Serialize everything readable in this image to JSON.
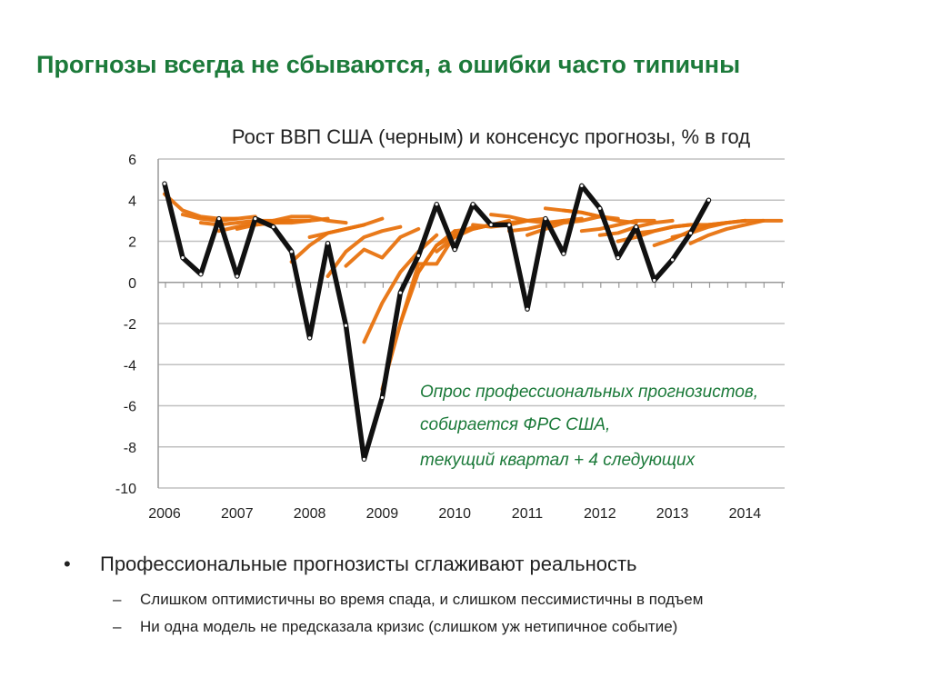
{
  "slide_title": "Прогнозы всегда не сбываются, а ошибки часто типичны",
  "chart_data": {
    "type": "line",
    "title": "Рост ВВП США (черным) и консенсус прогнозы, % в год",
    "xlabel": "",
    "ylabel": "",
    "ylim": [
      -10,
      6
    ],
    "yticks": [
      "6",
      "4",
      "2",
      "0",
      "-2",
      "-4",
      "-6",
      "-8",
      "-10"
    ],
    "ytick_values": [
      6,
      4,
      2,
      0,
      -2,
      -4,
      -6,
      -8,
      -10
    ],
    "xtick_labels": [
      "2006",
      "2007",
      "2008",
      "2009",
      "2010",
      "2011",
      "2012",
      "2013",
      "2014"
    ],
    "x_start": "2006Q1",
    "x_frequency": "quarterly",
    "grid": true,
    "colors": {
      "actual": "#111111",
      "forecast": "#e8730f",
      "grid": "#c0c0c0"
    },
    "actual": [
      4.8,
      1.2,
      0.4,
      3.1,
      0.3,
      3.1,
      2.7,
      1.5,
      -2.7,
      1.9,
      -2.1,
      -8.6,
      -5.6,
      -0.5,
      1.3,
      3.8,
      1.6,
      3.8,
      2.8,
      2.8,
      -1.3,
      3.1,
      1.4,
      4.7,
      3.6,
      1.2,
      2.7,
      0.1,
      1.1,
      2.4,
      4.0
    ],
    "forecasts": [
      {
        "start": 0,
        "values": [
          4.3,
          3.5,
          3.2,
          3.1,
          3.1
        ]
      },
      {
        "start": 1,
        "values": [
          3.3,
          3.1,
          3.0,
          3.1,
          3.2
        ]
      },
      {
        "start": 2,
        "values": [
          2.9,
          2.8,
          2.9,
          3.0,
          3.0
        ]
      },
      {
        "start": 3,
        "values": [
          2.5,
          2.7,
          2.9,
          3.0,
          3.0
        ]
      },
      {
        "start": 4,
        "values": [
          2.6,
          2.8,
          2.9,
          2.9,
          3.0
        ]
      },
      {
        "start": 5,
        "values": [
          2.8,
          2.9,
          3.0,
          3.0,
          3.1
        ]
      },
      {
        "start": 6,
        "values": [
          3.0,
          3.2,
          3.2,
          3.0,
          2.9
        ]
      },
      {
        "start": 7,
        "values": [
          1.0,
          1.8,
          2.4,
          2.6,
          2.8
        ]
      },
      {
        "start": 8,
        "values": [
          2.2,
          2.4,
          2.6,
          2.8,
          3.1
        ]
      },
      {
        "start": 9,
        "values": [
          0.3,
          1.5,
          2.2,
          2.5,
          2.7
        ]
      },
      {
        "start": 10,
        "values": [
          0.8,
          1.6,
          1.2,
          2.2,
          2.6
        ]
      },
      {
        "start": 11,
        "values": [
          -2.9,
          -1.0,
          0.5,
          1.5,
          2.3
        ]
      },
      {
        "start": 12,
        "values": [
          -5.2,
          -2.0,
          0.5,
          1.8,
          2.5
        ]
      },
      {
        "start": 13,
        "values": [
          -2.0,
          0.9,
          0.9,
          2.3,
          2.7
        ]
      },
      {
        "start": 14,
        "values": [
          0.5,
          1.8,
          2.3,
          2.6,
          2.8
        ]
      },
      {
        "start": 15,
        "values": [
          1.5,
          2.2,
          2.6,
          2.8,
          3.0
        ]
      },
      {
        "start": 16,
        "values": [
          2.5,
          2.6,
          2.8,
          2.9,
          3.0
        ]
      },
      {
        "start": 17,
        "values": [
          2.8,
          2.7,
          2.8,
          3.0,
          3.1
        ]
      },
      {
        "start": 18,
        "values": [
          3.3,
          3.2,
          3.0,
          2.9,
          3.0
        ]
      },
      {
        "start": 19,
        "values": [
          2.5,
          2.6,
          2.8,
          3.0,
          3.1
        ]
      },
      {
        "start": 20,
        "values": [
          2.3,
          2.6,
          2.9,
          3.0,
          3.2
        ]
      },
      {
        "start": 21,
        "values": [
          3.6,
          3.5,
          3.4,
          3.2,
          3.1
        ]
      },
      {
        "start": 22,
        "values": [
          3.5,
          3.4,
          3.2,
          3.0,
          2.9
        ]
      },
      {
        "start": 23,
        "values": [
          2.5,
          2.6,
          2.8,
          3.0,
          3.0
        ]
      },
      {
        "start": 24,
        "values": [
          2.3,
          2.4,
          2.7,
          2.9,
          3.0
        ]
      },
      {
        "start": 25,
        "values": [
          2.0,
          2.2,
          2.5,
          2.7,
          2.8
        ]
      },
      {
        "start": 26,
        "values": [
          2.4,
          2.5,
          2.7,
          2.8,
          2.8
        ]
      },
      {
        "start": 27,
        "values": [
          1.8,
          2.1,
          2.5,
          2.8,
          2.9
        ]
      },
      {
        "start": 28,
        "values": [
          2.2,
          2.4,
          2.7,
          2.9,
          3.0
        ]
      },
      {
        "start": 29,
        "values": [
          1.9,
          2.3,
          2.6,
          2.8,
          3.0
        ]
      },
      {
        "start": 30,
        "values": [
          2.8,
          2.9,
          3.0,
          3.0,
          3.0
        ]
      }
    ],
    "annotation": [
      "Опрос профессиональных прогнозистов,",
      "собирается ФРС США,",
      "текущий квартал + 4 следующих"
    ]
  },
  "bullets": {
    "main": "Профессиональные прогнозисты сглаживают реальность",
    "bullet_glyph": "•",
    "dash_glyph": "–",
    "subs": [
      "Слишком оптимистичны во время спада, и слишком пессимистичны в подъем",
      "Ни одна модель не предсказала кризис (слишком уж нетипичное событие)"
    ]
  }
}
